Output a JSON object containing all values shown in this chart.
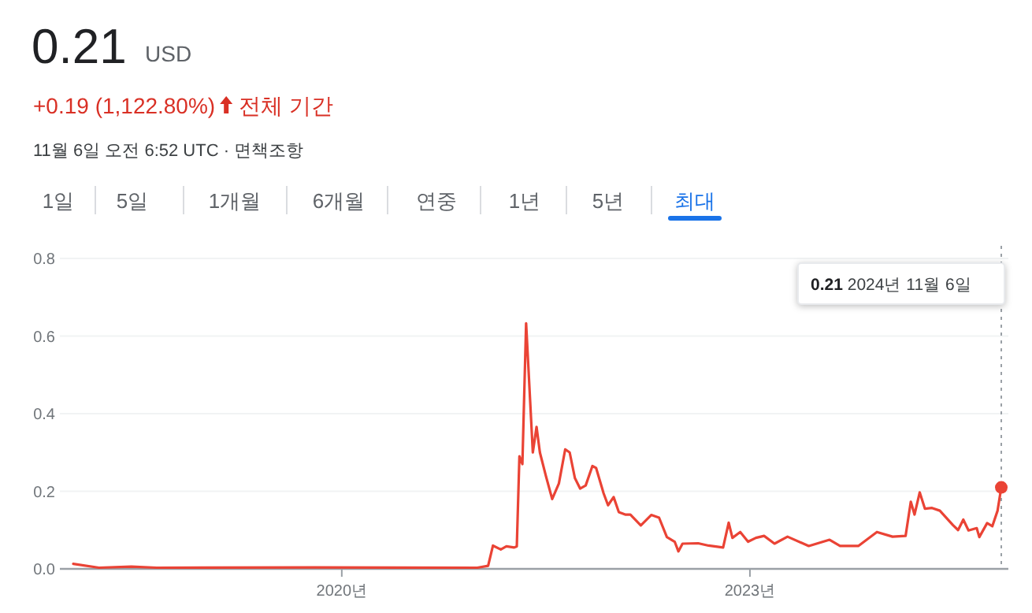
{
  "chart_data": {
    "type": "line",
    "title": "0.21",
    "subtitle": "USD",
    "annotations": [
      "+0.19 (1,122.80%)",
      "전체 기간",
      "11월 6일 오전 6:52 UTC · 면책조항",
      "1일",
      "5일",
      "1개월",
      "6개월",
      "연중",
      "1년",
      "5년",
      "최대",
      "0.21  2024년 11월 6일"
    ],
    "x": [
      "2018-01-10",
      "2018-03-20",
      "2018-06-15",
      "2018-08-22",
      "2019-10-20",
      "2020-12-30",
      "2021-01-28",
      "2021-02-10",
      "2021-03-03",
      "2021-03-18",
      "2021-04-08",
      "2021-04-15",
      "2021-04-22",
      "2021-04-30",
      "2021-05-10",
      "2021-05-28",
      "2021-06-07",
      "2021-06-16",
      "2021-07-02",
      "2021-07-19",
      "2021-08-06",
      "2021-08-23",
      "2021-09-04",
      "2021-09-18",
      "2021-10-02",
      "2021-10-17",
      "2021-11-04",
      "2021-11-14",
      "2021-12-04",
      "2021-12-16",
      "2021-12-31",
      "2022-01-14",
      "2022-01-31",
      "2022-02-14",
      "2022-03-14",
      "2022-04-11",
      "2022-05-02",
      "2022-05-23",
      "2022-06-13",
      "2022-06-23",
      "2022-07-04",
      "2022-08-15",
      "2022-09-12",
      "2022-10-21",
      "2022-11-05",
      "2022-11-15",
      "2022-12-06",
      "2022-12-27",
      "2023-01-17",
      "2023-02-08",
      "2023-03-08",
      "2023-04-12",
      "2023-06-08",
      "2023-08-03",
      "2023-08-31",
      "2023-10-19",
      "2023-12-08",
      "2024-01-19",
      "2024-02-23",
      "2024-03-08",
      "2024-03-18",
      "2024-04-01",
      "2024-04-15",
      "2024-05-04",
      "2024-05-25",
      "2024-06-29",
      "2024-07-13",
      "2024-07-27",
      "2024-08-10",
      "2024-09-01",
      "2024-09-08",
      "2024-09-29",
      "2024-10-13",
      "2024-10-27",
      "2024-11-06"
    ],
    "series": [
      {
        "color": "#ea4335",
        "values": [
          0.013,
          0.003,
          0.006,
          0.003,
          0.004,
          0.003,
          0.008,
          0.06,
          0.05,
          0.058,
          0.055,
          0.058,
          0.29,
          0.27,
          0.633,
          0.3,
          0.366,
          0.3,
          0.24,
          0.18,
          0.22,
          0.308,
          0.3,
          0.234,
          0.207,
          0.215,
          0.265,
          0.26,
          0.195,
          0.164,
          0.185,
          0.146,
          0.14,
          0.14,
          0.112,
          0.139,
          0.132,
          0.082,
          0.07,
          0.045,
          0.065,
          0.066,
          0.06,
          0.055,
          0.119,
          0.08,
          0.095,
          0.07,
          0.08,
          0.085,
          0.065,
          0.083,
          0.059,
          0.075,
          0.059,
          0.059,
          0.095,
          0.083,
          0.085,
          0.173,
          0.14,
          0.197,
          0.155,
          0.157,
          0.15,
          0.113,
          0.1,
          0.127,
          0.099,
          0.105,
          0.082,
          0.118,
          0.11,
          0.15,
          0.21
        ]
      }
    ],
    "xlim": [
      "2017-12-05",
      "2024-11-25"
    ],
    "xticks": [
      {
        "value": "2020-01-01",
        "label": "2020년"
      },
      {
        "value": "2023-01-01",
        "label": "2023년"
      }
    ],
    "ylim": [
      0,
      0.8
    ],
    "yticks": [
      {
        "value": 0,
        "label": "0.0"
      },
      0.2,
      0.4,
      0.6,
      0.8
    ],
    "grid": "y",
    "marker": "none",
    "line_style": "solid",
    "ref_lines": [
      {
        "axis": "x",
        "value": "2024-11-06",
        "color": "#9aa0a6",
        "line_style": "dotted"
      }
    ]
  }
}
